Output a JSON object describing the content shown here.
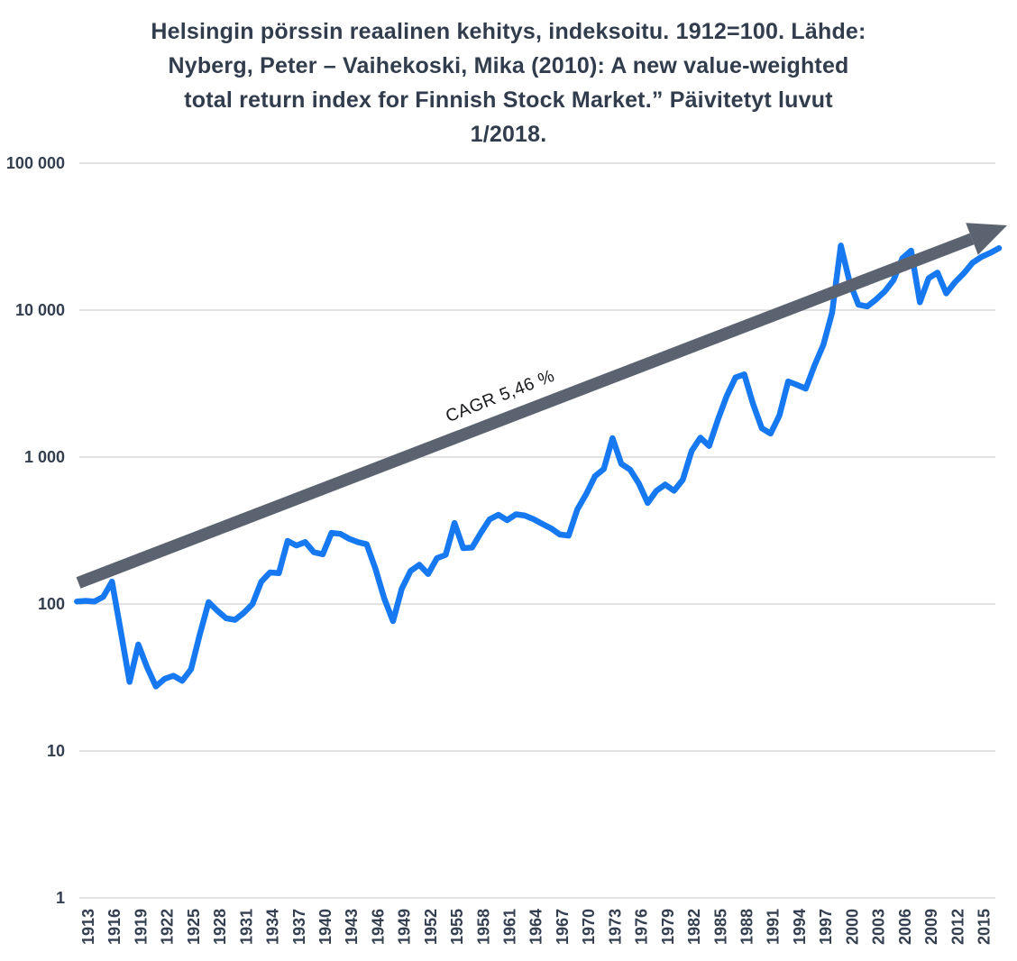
{
  "title_lines": [
    "Helsingin pörssin reaalinen kehitys, indeksoitu. 1912=100. Lähde:",
    "Nyberg, Peter – Vaihekoski, Mika (2010): A new value-weighted",
    "total return index for Finnish Stock Market.” Päivitetyt luvut",
    "1/2018."
  ],
  "colors": {
    "line": "#1779f2",
    "arrow": "#5b6371",
    "grid": "#d9d9d9",
    "axis_text": "#333e4f",
    "title_text": "#313c4d",
    "annotation_text": "#17191d",
    "background": "#ffffff"
  },
  "chart_data": {
    "type": "line",
    "title": "Helsingin pörssin reaalinen kehitys, indeksoitu. 1912=100. Lähde: Nyberg, Peter – Vaihekoski, Mika (2010): A new value-weighted total return index for Finnish Stock Market.” Päivitetyt luvut 1/2018.",
    "y_scale": "log",
    "ylim": [
      1,
      100000
    ],
    "xlim": [
      1912,
      2017
    ],
    "grid": "horizontal",
    "legend": "none",
    "y_axis": {
      "ticks": [
        {
          "value": 1,
          "label": "1"
        },
        {
          "value": 10,
          "label": "10"
        },
        {
          "value": 100,
          "label": "100"
        },
        {
          "value": 1000,
          "label": "1 000"
        },
        {
          "value": 10000,
          "label": "10 000"
        },
        {
          "value": 100000,
          "label": "100 000"
        }
      ]
    },
    "x_axis": {
      "tick_interval": 3,
      "tick_labels": [
        "1913",
        "1916",
        "1919",
        "1922",
        "1925",
        "1928",
        "1931",
        "1934",
        "1937",
        "1940",
        "1943",
        "1946",
        "1949",
        "1952",
        "1955",
        "1958",
        "1961",
        "1964",
        "1967",
        "1970",
        "1973",
        "1976",
        "1979",
        "1982",
        "1985",
        "1988",
        "1991",
        "1994",
        "1997",
        "2000",
        "2003",
        "2006",
        "2009",
        "2012",
        "2015"
      ]
    },
    "x": [
      1912,
      1913,
      1914,
      1915,
      1916,
      1917,
      1918,
      1919,
      1920,
      1921,
      1922,
      1923,
      1924,
      1925,
      1926,
      1927,
      1928,
      1929,
      1930,
      1931,
      1932,
      1933,
      1934,
      1935,
      1936,
      1937,
      1938,
      1939,
      1940,
      1941,
      1942,
      1943,
      1944,
      1945,
      1946,
      1947,
      1948,
      1949,
      1950,
      1951,
      1952,
      1953,
      1954,
      1955,
      1956,
      1957,
      1958,
      1959,
      1960,
      1961,
      1962,
      1963,
      1964,
      1965,
      1966,
      1967,
      1968,
      1969,
      1970,
      1971,
      1972,
      1973,
      1974,
      1975,
      1976,
      1977,
      1978,
      1979,
      1980,
      1981,
      1982,
      1983,
      1984,
      1985,
      1986,
      1987,
      1988,
      1989,
      1990,
      1991,
      1992,
      1993,
      1994,
      1995,
      1996,
      1997,
      1998,
      1999,
      2000,
      2001,
      2002,
      2003,
      2004,
      2005,
      2006,
      2007,
      2008,
      2009,
      2010,
      2011,
      2012,
      2013,
      2014,
      2015,
      2016,
      2017
    ],
    "values": [
      104,
      105,
      104,
      112,
      142,
      65,
      29.5,
      53,
      37,
      27.5,
      31,
      32.5,
      30,
      36,
      62,
      103,
      90,
      80,
      78,
      87,
      100,
      142,
      164,
      162,
      269,
      250,
      264,
      225,
      218,
      305,
      300,
      278,
      264,
      255,
      174,
      109,
      76.5,
      127,
      168,
      185,
      160,
      205,
      216,
      356,
      240,
      242,
      305,
      377,
      405,
      372,
      408,
      400,
      378,
      351,
      327,
      297,
      292,
      441,
      560,
      740,
      830,
      1346,
      900,
      820,
      660,
      487,
      590,
      650,
      590,
      700,
      1100,
      1355,
      1190,
      1800,
      2600,
      3480,
      3650,
      2300,
      1570,
      1445,
      1920,
      3270,
      3100,
      2920,
      4200,
      5800,
      9600,
      27500,
      15500,
      10900,
      10600,
      11800,
      13400,
      16000,
      22500,
      25400,
      11300,
      16500,
      18000,
      13000,
      15500,
      17800,
      21000,
      23000,
      24500,
      26400
    ],
    "annotation": {
      "label": "CAGR 5,46 %",
      "cagr_percent": "5,46",
      "style": "trend-arrow"
    }
  }
}
